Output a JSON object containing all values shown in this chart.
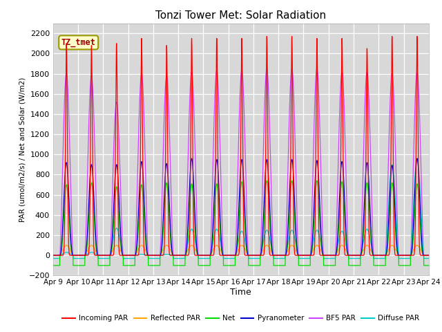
{
  "title": "Tonzi Tower Met: Solar Radiation",
  "ylabel": "PAR (umol/m2/s) / Net and Solar (W/m2)",
  "xlabel": "Time",
  "ylim": [
    -200,
    2300
  ],
  "yticks": [
    -200,
    0,
    200,
    400,
    600,
    800,
    1000,
    1200,
    1400,
    1600,
    1800,
    2000,
    2200
  ],
  "xlim": [
    0,
    15
  ],
  "xtick_labels": [
    "Apr 9",
    "Apr 10",
    "Apr 11",
    "Apr 12",
    "Apr 13",
    "Apr 14",
    "Apr 15",
    "Apr 16",
    "Apr 17",
    "Apr 18",
    "Apr 19",
    "Apr 20",
    "Apr 21",
    "Apr 22",
    "Apr 23",
    "Apr 24"
  ],
  "xtick_positions": [
    0,
    1,
    2,
    3,
    4,
    5,
    6,
    7,
    8,
    9,
    10,
    11,
    12,
    13,
    14,
    15
  ],
  "annotation_text": "TZ_tmet",
  "bg_color": "#d8d8d8",
  "fig_color": "#ffffff",
  "colors": {
    "incoming_par": "#ff0000",
    "reflected_par": "#ffa500",
    "net": "#00dd00",
    "pyranometer": "#0000cc",
    "bf5_par": "#cc44ff",
    "diffuse_par": "#00cccc"
  },
  "legend_labels": [
    "Incoming PAR",
    "Reflected PAR",
    "Net",
    "Pyranometer",
    "BF5 PAR",
    "Diffuse PAR"
  ],
  "incoming_peaks": [
    2100,
    2080,
    2100,
    2150,
    2080,
    2150,
    2150,
    2150,
    2170,
    2170,
    2150,
    2150,
    2050,
    2170,
    2170
  ],
  "bf5_peaks": [
    1800,
    1780,
    1520,
    1800,
    1780,
    1820,
    1830,
    1830,
    1850,
    1850,
    1850,
    1820,
    1820,
    1800,
    1820
  ],
  "pyra_peaks": [
    920,
    900,
    900,
    930,
    910,
    960,
    950,
    950,
    950,
    950,
    940,
    930,
    920,
    890,
    960
  ],
  "net_peaks": [
    700,
    720,
    680,
    700,
    720,
    710,
    710,
    730,
    740,
    740,
    740,
    730,
    720,
    720,
    710
  ],
  "diff_peaks": [
    30,
    30,
    270,
    10,
    10,
    260,
    260,
    240,
    250,
    250,
    250,
    240,
    260,
    900,
    960
  ],
  "reflected_peak": 100,
  "net_night": -100,
  "diff_night": -30,
  "n_days": 15,
  "ppt": 500
}
